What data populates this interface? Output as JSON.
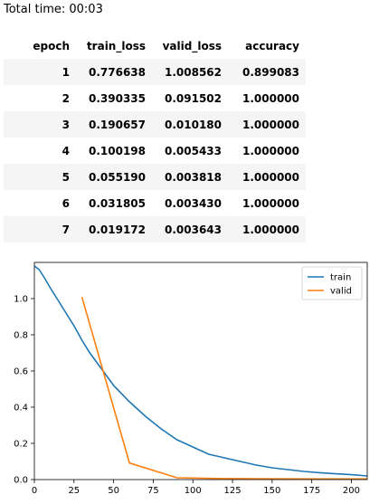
{
  "total_time": "Total time: 00:03",
  "table": {
    "headers": [
      "epoch",
      "train_loss",
      "valid_loss",
      "accuracy"
    ],
    "rows": [
      [
        "1",
        "0.776638",
        "1.008562",
        "0.899083"
      ],
      [
        "2",
        "0.390335",
        "0.091502",
        "1.000000"
      ],
      [
        "3",
        "0.190657",
        "0.010180",
        "1.000000"
      ],
      [
        "4",
        "0.100198",
        "0.005433",
        "1.000000"
      ],
      [
        "5",
        "0.055190",
        "0.003818",
        "1.000000"
      ],
      [
        "6",
        "0.031805",
        "0.003430",
        "1.000000"
      ],
      [
        "7",
        "0.019172",
        "0.003643",
        "1.000000"
      ]
    ]
  },
  "chart_data": {
    "type": "line",
    "xlim": [
      0,
      210
    ],
    "ylim": [
      0,
      1.2
    ],
    "xticks": [
      "0",
      "25",
      "50",
      "75",
      "100",
      "125",
      "150",
      "175",
      "200"
    ],
    "yticks": [
      "0.0",
      "0.2",
      "0.4",
      "0.6",
      "0.8",
      "1.0"
    ],
    "legend_position": "top-right",
    "series": [
      {
        "name": "train",
        "color": "#1f77b4",
        "x": [
          0,
          3,
          6,
          10,
          15,
          20,
          25,
          30,
          35,
          40,
          45,
          50,
          60,
          70,
          80,
          90,
          100,
          110,
          120,
          130,
          140,
          150,
          160,
          170,
          180,
          190,
          200,
          210
        ],
        "y": [
          1.18,
          1.16,
          1.12,
          1.06,
          0.99,
          0.92,
          0.85,
          0.77,
          0.7,
          0.64,
          0.58,
          0.52,
          0.43,
          0.35,
          0.28,
          0.22,
          0.18,
          0.14,
          0.12,
          0.1,
          0.08,
          0.065,
          0.055,
          0.045,
          0.038,
          0.032,
          0.027,
          0.02
        ]
      },
      {
        "name": "valid",
        "color": "#ff7f0e",
        "x": [
          30,
          60,
          90,
          120,
          150,
          180,
          210
        ],
        "y": [
          1.008562,
          0.091502,
          0.01018,
          0.005433,
          0.003818,
          0.00343,
          0.003643
        ]
      }
    ]
  }
}
